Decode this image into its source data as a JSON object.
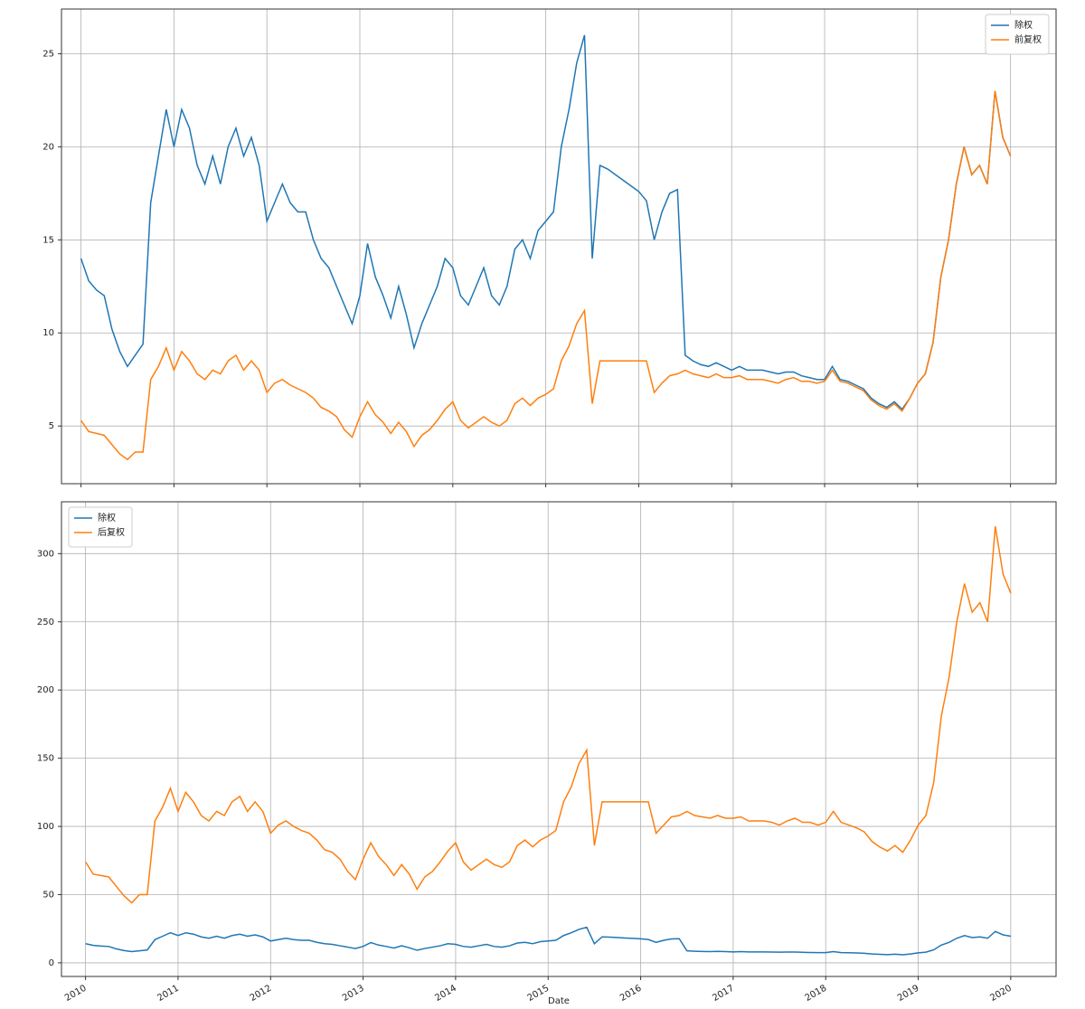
{
  "chart_data": [
    {
      "type": "line",
      "x": [
        2010,
        2010.083,
        2010.167,
        2010.25,
        2010.333,
        2010.417,
        2010.5,
        2010.583,
        2010.667,
        2010.75,
        2010.833,
        2010.917,
        2011,
        2011.083,
        2011.167,
        2011.25,
        2011.333,
        2011.417,
        2011.5,
        2011.583,
        2011.667,
        2011.75,
        2011.833,
        2011.917,
        2012,
        2012.083,
        2012.167,
        2012.25,
        2012.333,
        2012.417,
        2012.5,
        2012.583,
        2012.667,
        2012.75,
        2012.833,
        2012.917,
        2013,
        2013.083,
        2013.167,
        2013.25,
        2013.333,
        2013.417,
        2013.5,
        2013.583,
        2013.667,
        2013.75,
        2013.833,
        2013.917,
        2014,
        2014.083,
        2014.167,
        2014.25,
        2014.333,
        2014.417,
        2014.5,
        2014.583,
        2014.667,
        2014.75,
        2014.833,
        2014.917,
        2015,
        2015.083,
        2015.167,
        2015.25,
        2015.333,
        2015.417,
        2015.5,
        2015.583,
        2015.667,
        2015.75,
        2015.833,
        2015.917,
        2016,
        2016.083,
        2016.167,
        2016.25,
        2016.333,
        2016.417,
        2016.5,
        2016.583,
        2016.667,
        2016.75,
        2016.833,
        2016.917,
        2017,
        2017.083,
        2017.167,
        2017.25,
        2017.333,
        2017.417,
        2017.5,
        2017.583,
        2017.667,
        2017.75,
        2017.833,
        2017.917,
        2018,
        2018.083,
        2018.167,
        2018.25,
        2018.333,
        2018.417,
        2018.5,
        2018.583,
        2018.667,
        2018.75,
        2018.833,
        2018.917,
        2019,
        2019.083,
        2019.167,
        2019.25,
        2019.333,
        2019.417,
        2019.5,
        2019.583,
        2019.667,
        2019.75,
        2019.833,
        2019.917,
        2020
      ],
      "series": [
        {
          "name": "除权",
          "color": "#1f77b4",
          "values": [
            14.0,
            12.8,
            12.3,
            12.0,
            10.2,
            9.0,
            8.2,
            8.8,
            9.4,
            17.0,
            19.5,
            22.0,
            20.0,
            22.0,
            21.0,
            19.0,
            18.0,
            19.5,
            18.0,
            20.0,
            21.0,
            19.5,
            20.5,
            19.0,
            16.0,
            17.0,
            18.0,
            17.0,
            16.5,
            16.5,
            15.0,
            14.0,
            13.5,
            12.5,
            11.5,
            10.5,
            12.0,
            14.8,
            13.0,
            12.0,
            10.8,
            12.5,
            11.0,
            9.2,
            10.5,
            11.5,
            12.5,
            14.0,
            13.5,
            12.0,
            11.5,
            12.5,
            13.5,
            12.0,
            11.5,
            12.5,
            14.5,
            15.0,
            14.0,
            15.5,
            16.0,
            16.5,
            20.0,
            22.0,
            24.5,
            26.0,
            14.0,
            19.0,
            18.8,
            18.5,
            18.2,
            17.9,
            17.6,
            17.1,
            15.0,
            16.5,
            17.5,
            17.7,
            8.8,
            8.5,
            8.3,
            8.2,
            8.4,
            8.2,
            8.0,
            8.2,
            8.0,
            8.0,
            8.0,
            7.9,
            7.8,
            7.9,
            7.9,
            7.7,
            7.6,
            7.5,
            7.5,
            8.2,
            7.5,
            7.4,
            7.2,
            7.0,
            6.5,
            6.2,
            6.0,
            6.3,
            5.9,
            6.5,
            7.3,
            7.8,
            9.5,
            13.0,
            15.0,
            18.0,
            20.0,
            18.5,
            19.0,
            18.0,
            23.0,
            20.5,
            19.5
          ]
        },
        {
          "name": "前复权",
          "color": "#ff7f0e",
          "values": [
            5.3,
            4.7,
            4.6,
            4.5,
            4.0,
            3.5,
            3.2,
            3.6,
            3.6,
            7.5,
            8.2,
            9.2,
            8.0,
            9.0,
            8.5,
            7.8,
            7.5,
            8.0,
            7.8,
            8.5,
            8.8,
            8.0,
            8.5,
            8.0,
            6.8,
            7.3,
            7.5,
            7.2,
            7.0,
            6.8,
            6.5,
            6.0,
            5.8,
            5.5,
            4.8,
            4.4,
            5.5,
            6.3,
            5.6,
            5.2,
            4.6,
            5.2,
            4.7,
            3.9,
            4.5,
            4.8,
            5.3,
            5.9,
            6.3,
            5.3,
            4.9,
            5.2,
            5.5,
            5.2,
            5.0,
            5.3,
            6.2,
            6.5,
            6.1,
            6.5,
            6.7,
            7.0,
            8.5,
            9.3,
            10.5,
            11.2,
            6.2,
            8.5,
            8.5,
            8.5,
            8.5,
            8.5,
            8.5,
            8.5,
            6.8,
            7.3,
            7.7,
            7.8,
            8.0,
            7.8,
            7.7,
            7.6,
            7.8,
            7.6,
            7.6,
            7.7,
            7.5,
            7.5,
            7.5,
            7.4,
            7.3,
            7.5,
            7.6,
            7.4,
            7.4,
            7.3,
            7.4,
            8.0,
            7.4,
            7.3,
            7.1,
            6.9,
            6.4,
            6.1,
            5.9,
            6.2,
            5.8,
            6.5,
            7.3,
            7.8,
            9.5,
            13.0,
            15.0,
            18.0,
            20.0,
            18.5,
            19.0,
            18.0,
            23.0,
            20.5,
            19.5
          ]
        }
      ],
      "xlim": [
        2009.79,
        2020.49
      ],
      "xticks": [
        2010,
        2011,
        2012,
        2013,
        2014,
        2015,
        2016,
        2017,
        2018,
        2019,
        2020
      ],
      "ylim": [
        1.9,
        27.4
      ],
      "yticks": [
        5,
        10,
        15,
        20,
        25
      ],
      "grid": true,
      "legend": "upper right"
    },
    {
      "type": "line",
      "x": [
        2010,
        2010.083,
        2010.167,
        2010.25,
        2010.333,
        2010.417,
        2010.5,
        2010.583,
        2010.667,
        2010.75,
        2010.833,
        2010.917,
        2011,
        2011.083,
        2011.167,
        2011.25,
        2011.333,
        2011.417,
        2011.5,
        2011.583,
        2011.667,
        2011.75,
        2011.833,
        2011.917,
        2012,
        2012.083,
        2012.167,
        2012.25,
        2012.333,
        2012.417,
        2012.5,
        2012.583,
        2012.667,
        2012.75,
        2012.833,
        2012.917,
        2013,
        2013.083,
        2013.167,
        2013.25,
        2013.333,
        2013.417,
        2013.5,
        2013.583,
        2013.667,
        2013.75,
        2013.833,
        2013.917,
        2014,
        2014.083,
        2014.167,
        2014.25,
        2014.333,
        2014.417,
        2014.5,
        2014.583,
        2014.667,
        2014.75,
        2014.833,
        2014.917,
        2015,
        2015.083,
        2015.167,
        2015.25,
        2015.333,
        2015.417,
        2015.5,
        2015.583,
        2015.667,
        2015.75,
        2015.833,
        2015.917,
        2016,
        2016.083,
        2016.167,
        2016.25,
        2016.333,
        2016.417,
        2016.5,
        2016.583,
        2016.667,
        2016.75,
        2016.833,
        2016.917,
        2017,
        2017.083,
        2017.167,
        2017.25,
        2017.333,
        2017.417,
        2017.5,
        2017.583,
        2017.667,
        2017.75,
        2017.833,
        2017.917,
        2018,
        2018.083,
        2018.167,
        2018.25,
        2018.333,
        2018.417,
        2018.5,
        2018.583,
        2018.667,
        2018.75,
        2018.833,
        2018.917,
        2019,
        2019.083,
        2019.167,
        2019.25,
        2019.333,
        2019.417,
        2019.5,
        2019.583,
        2019.667,
        2019.75,
        2019.833,
        2019.917,
        2020
      ],
      "series": [
        {
          "name": "除权",
          "color": "#1f77b4",
          "values": [
            14.0,
            12.8,
            12.3,
            12.0,
            10.2,
            9.0,
            8.2,
            8.8,
            9.4,
            17.0,
            19.5,
            22.0,
            20.0,
            22.0,
            21.0,
            19.0,
            18.0,
            19.5,
            18.0,
            20.0,
            21.0,
            19.5,
            20.5,
            19.0,
            16.0,
            17.0,
            18.0,
            17.0,
            16.5,
            16.5,
            15.0,
            14.0,
            13.5,
            12.5,
            11.5,
            10.5,
            12.0,
            14.8,
            13.0,
            12.0,
            10.8,
            12.5,
            11.0,
            9.2,
            10.5,
            11.5,
            12.5,
            14.0,
            13.5,
            12.0,
            11.5,
            12.5,
            13.5,
            12.0,
            11.5,
            12.5,
            14.5,
            15.0,
            14.0,
            15.5,
            16.0,
            16.5,
            20.0,
            22.0,
            24.5,
            26.0,
            14.0,
            19.0,
            18.8,
            18.5,
            18.2,
            17.9,
            17.6,
            17.1,
            15.0,
            16.5,
            17.5,
            17.7,
            8.8,
            8.5,
            8.3,
            8.2,
            8.4,
            8.2,
            8.0,
            8.2,
            8.0,
            8.0,
            8.0,
            7.9,
            7.8,
            7.9,
            7.9,
            7.7,
            7.6,
            7.5,
            7.5,
            8.2,
            7.5,
            7.4,
            7.2,
            7.0,
            6.5,
            6.2,
            6.0,
            6.3,
            5.9,
            6.5,
            7.3,
            7.8,
            9.5,
            13.0,
            15.0,
            18.0,
            20.0,
            18.5,
            19.0,
            18.0,
            23.0,
            20.5,
            19.5
          ]
        },
        {
          "name": "后复权",
          "color": "#ff7f0e",
          "values": [
            74,
            65,
            64,
            63,
            56,
            49,
            44,
            50,
            50,
            104,
            114,
            128,
            111,
            125,
            118,
            108,
            104,
            111,
            108,
            118,
            122,
            111,
            118,
            111,
            95,
            101,
            104,
            100,
            97,
            95,
            90,
            83,
            81,
            76,
            67,
            61,
            76,
            88,
            78,
            72,
            64,
            72,
            65,
            54,
            63,
            67,
            74,
            82,
            88,
            74,
            68,
            72,
            76,
            72,
            70,
            74,
            86,
            90,
            85,
            90,
            93,
            97,
            118,
            129,
            146,
            156,
            86,
            118,
            118,
            118,
            118,
            118,
            118,
            118,
            95,
            101,
            107,
            108,
            111,
            108,
            107,
            106,
            108,
            106,
            106,
            107,
            104,
            104,
            104,
            103,
            101,
            104,
            106,
            103,
            103,
            101,
            103,
            111,
            103,
            101,
            99,
            96,
            89,
            85,
            82,
            86,
            81,
            90,
            101,
            108,
            132,
            181,
            209,
            250,
            278,
            257,
            264,
            250,
            320,
            285,
            271
          ]
        }
      ],
      "xlim": [
        2009.74,
        2020.49
      ],
      "xticks": [
        2010,
        2011,
        2012,
        2013,
        2014,
        2015,
        2016,
        2017,
        2018,
        2019,
        2020
      ],
      "ylim": [
        -10,
        338
      ],
      "yticks": [
        0,
        50,
        100,
        150,
        200,
        250,
        300
      ],
      "xlabel": "Date",
      "grid": true,
      "legend": "upper left"
    }
  ]
}
